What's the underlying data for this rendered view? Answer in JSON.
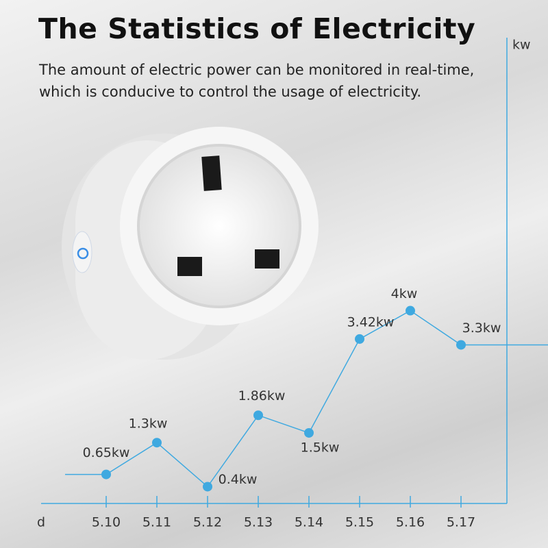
{
  "chart_data": {
    "type": "line",
    "title": "The Statistics of Electricity",
    "subtitle": "The amount of electric power can be monitored in real-time, which is conducive to control the usage of electricity.",
    "x_label": "d",
    "y_label": "kw",
    "categories": [
      "5.10",
      "5.11",
      "5.12",
      "5.13",
      "5.14",
      "5.15",
      "5.16",
      "5.17"
    ],
    "values": [
      0.65,
      1.3,
      0.4,
      1.86,
      1.5,
      3.42,
      4,
      3.3
    ],
    "value_labels": [
      "0.65kw",
      "1.3kw",
      "0.4kw",
      "1.86kw",
      "1.5kw",
      "3.42kw",
      "4kw",
      "3.3kw"
    ],
    "color": "#3fa9e0",
    "ylim": [
      0,
      9.5
    ]
  }
}
